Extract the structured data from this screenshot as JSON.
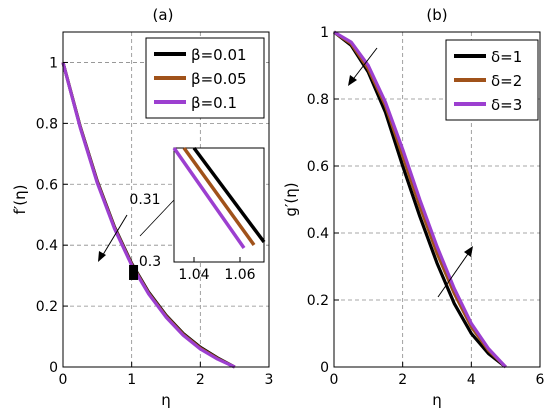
{
  "chart_data": [
    {
      "panel": "(a)",
      "type": "line",
      "xlabel": "η",
      "ylabel": "f′(η)",
      "xlim": [
        0,
        3
      ],
      "ylim": [
        0,
        1.1
      ],
      "xticks": [
        "0",
        "1",
        "2",
        "3"
      ],
      "yticks": [
        "0",
        "0.2",
        "0.4",
        "0.6",
        "0.8",
        "1"
      ],
      "grid": true,
      "legend_position": "top-right",
      "series": [
        {
          "name": "β=0.01",
          "color": "#000000",
          "x": [
            0,
            0.25,
            0.5,
            0.75,
            1.0,
            1.25,
            1.5,
            1.75,
            2.0,
            2.25,
            2.5
          ],
          "y": [
            1.0,
            0.79,
            0.61,
            0.46,
            0.34,
            0.245,
            0.17,
            0.11,
            0.065,
            0.03,
            0.0
          ]
        },
        {
          "name": "β=0.05",
          "color": "#a0521a",
          "x": [
            0,
            0.25,
            0.5,
            0.75,
            1.0,
            1.25,
            1.5,
            1.75,
            2.0,
            2.25,
            2.5
          ],
          "y": [
            1.0,
            0.788,
            0.607,
            0.457,
            0.337,
            0.242,
            0.167,
            0.107,
            0.062,
            0.028,
            0.0
          ]
        },
        {
          "name": "β=0.1",
          "color": "#9c3fd0",
          "x": [
            0,
            0.25,
            0.5,
            0.75,
            1.0,
            1.25,
            1.5,
            1.75,
            2.0,
            2.25,
            2.5
          ],
          "y": [
            1.0,
            0.786,
            0.604,
            0.454,
            0.334,
            0.239,
            0.164,
            0.104,
            0.059,
            0.026,
            0.0
          ]
        }
      ],
      "annotations": [
        "0.31",
        "0.3"
      ],
      "inset": {
        "xticks": [
          "1.04",
          "1.06"
        ],
        "xlim": [
          1.025,
          1.075
        ]
      }
    },
    {
      "panel": "(b)",
      "type": "line",
      "xlabel": "η",
      "ylabel": "g′(η)",
      "xlim": [
        0,
        6
      ],
      "ylim": [
        0,
        1
      ],
      "xticks": [
        "0",
        "2",
        "4",
        "6"
      ],
      "yticks": [
        "0",
        "0.2",
        "0.4",
        "0.6",
        "0.8",
        "1"
      ],
      "grid": true,
      "legend_position": "top-right",
      "series": [
        {
          "name": "δ=1",
          "color": "#000000",
          "x": [
            0,
            0.5,
            1.0,
            1.5,
            2.0,
            2.5,
            3.0,
            3.5,
            4.0,
            4.5,
            5.0
          ],
          "y": [
            1.0,
            0.96,
            0.88,
            0.76,
            0.6,
            0.45,
            0.31,
            0.19,
            0.1,
            0.04,
            0.0
          ]
        },
        {
          "name": "δ=2",
          "color": "#a0521a",
          "x": [
            0,
            0.5,
            1.0,
            1.5,
            2.0,
            2.5,
            3.0,
            3.5,
            4.0,
            4.5,
            5.0
          ],
          "y": [
            1.0,
            0.965,
            0.89,
            0.78,
            0.63,
            0.48,
            0.34,
            0.22,
            0.12,
            0.05,
            0.0
          ]
        },
        {
          "name": "δ=3",
          "color": "#9c3fd0",
          "x": [
            0,
            0.5,
            1.0,
            1.5,
            2.0,
            2.5,
            3.0,
            3.5,
            4.0,
            4.5,
            5.0
          ],
          "y": [
            1.0,
            0.97,
            0.9,
            0.79,
            0.65,
            0.5,
            0.36,
            0.235,
            0.13,
            0.055,
            0.0
          ]
        }
      ]
    }
  ]
}
